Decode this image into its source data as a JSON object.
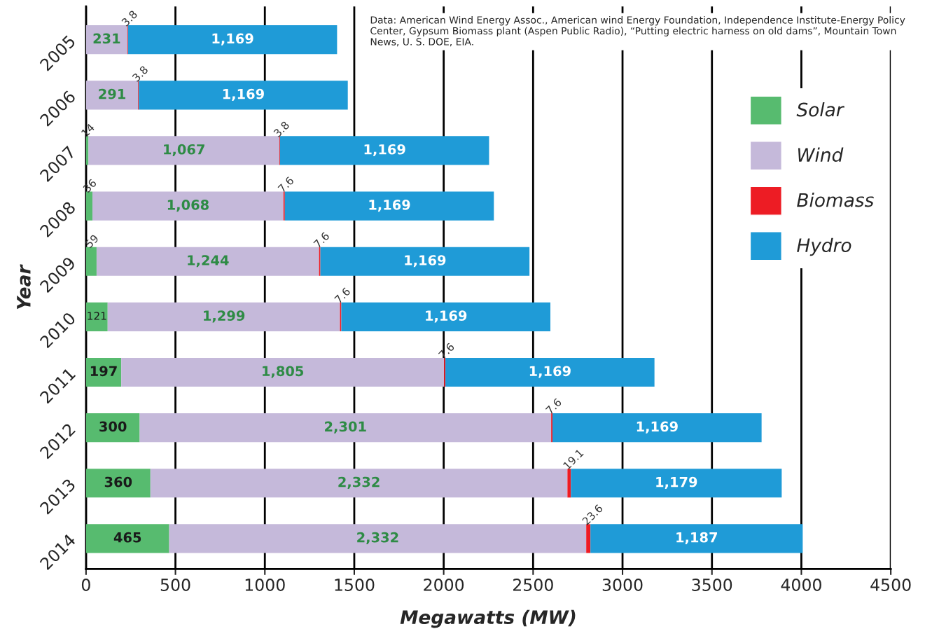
{
  "chart_data": {
    "type": "bar",
    "orientation": "horizontal",
    "stacked": true,
    "categories": [
      "2005",
      "2006",
      "2007",
      "2008",
      "2009",
      "2010",
      "2011",
      "2012",
      "2013",
      "2014"
    ],
    "series": [
      {
        "name": "Solar",
        "color": "#57bb6f",
        "values": [
          null,
          null,
          14,
          36,
          59,
          121,
          197,
          300,
          360,
          465
        ],
        "value_labels": [
          null,
          null,
          "14",
          "36",
          "59",
          "121",
          "197",
          "300",
          "360",
          "465"
        ]
      },
      {
        "name": "Wind",
        "color": "#c5b9da",
        "values": [
          231,
          291,
          1067,
          1068,
          1244,
          1299,
          1805,
          2301,
          2332,
          2332
        ],
        "value_labels": [
          "231",
          "291",
          "1,067",
          "1,068",
          "1,244",
          "1,299",
          "1,805",
          "2,301",
          "2,332",
          "2,332"
        ]
      },
      {
        "name": "Biomass",
        "color": "#ed1c24",
        "values": [
          3.8,
          3.8,
          3.8,
          7.6,
          7.6,
          7.6,
          7.6,
          7.6,
          19.1,
          23.6
        ],
        "value_labels": [
          "3.8",
          "3.8",
          "3.8",
          "7.6",
          "7.6",
          "7.6",
          "7.6",
          "7.6",
          "19.1",
          "23.6"
        ]
      },
      {
        "name": "Hydro",
        "color": "#1f9bd7",
        "values": [
          1169,
          1169,
          1169,
          1169,
          1169,
          1169,
          1169,
          1169,
          1179,
          1187
        ],
        "value_labels": [
          "1,169",
          "1,169",
          "1,169",
          "1,169",
          "1,169",
          "1,169",
          "1,169",
          "1,169",
          "1,179",
          "1,187"
        ]
      }
    ],
    "xlim": [
      0,
      4500
    ],
    "xticks": [
      0,
      500,
      1000,
      1500,
      2000,
      2500,
      3000,
      3500,
      4000,
      4500
    ],
    "xlabel": "Megawatts (MW)",
    "ylabel": "Year",
    "grid": "x",
    "legend": "top right",
    "annotations": [
      "Data: American Wind Energy Assoc., American wind Energy Foundation, Independence Institute-Energy Policy Center, Gypsum Biomass plant (Aspen Public Radio), “Putting electric harness on old dams”, Mountain Town News, U. S. DOE, EIA."
    ]
  }
}
